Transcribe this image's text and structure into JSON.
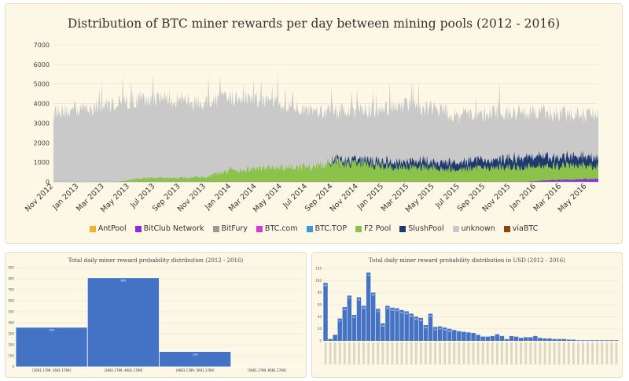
{
  "top": {
    "chart_data": {
      "type": "area",
      "title": "Distribution of BTC miner rewards per day between mining pools (2012 - 2016)",
      "yticks": [
        0,
        1000,
        2000,
        3000,
        4000,
        5000,
        6000,
        7000
      ],
      "ylim": [
        0,
        7000
      ],
      "x_labels": [
        "Nov 2012",
        "Jan 2013",
        "Mar 2013",
        "May 2013",
        "Jul 2013",
        "Sep 2013",
        "Nov 2013",
        "Jan 2014",
        "Mar 2014",
        "May 2014",
        "Jul 2014",
        "Sep 2014",
        "Nov 2014",
        "Jan 2015",
        "Mar 2015",
        "May 2015",
        "Jul 2015",
        "Sep 2015",
        "Nov 2015",
        "Jan 2016",
        "Mar 2016",
        "May 2016"
      ],
      "series": [
        {
          "name": "AntPool",
          "color": "#f2b32b"
        },
        {
          "name": "BitClub Network",
          "color": "#8a2be2"
        },
        {
          "name": "BitFury",
          "color": "#999999"
        },
        {
          "name": "BTC.com",
          "color": "#d23cc8"
        },
        {
          "name": "BTC.TOP",
          "color": "#3a9ad9"
        },
        {
          "name": "F2 Pool",
          "color": "#8bc34a"
        },
        {
          "name": "SlushPool",
          "color": "#1f3a6e"
        },
        {
          "name": "unknown",
          "color": "#c9c9c9"
        },
        {
          "name": "viaBTC",
          "color": "#8b4513"
        }
      ],
      "total_profile": [
        [
          0,
          3500
        ],
        [
          1,
          3700
        ],
        [
          2,
          3900
        ],
        [
          3,
          4100
        ],
        [
          4,
          4300
        ],
        [
          5,
          4200
        ],
        [
          6,
          4000
        ],
        [
          7,
          4300
        ],
        [
          8,
          4200
        ],
        [
          9,
          4000
        ],
        [
          10,
          3700
        ],
        [
          11,
          3600
        ],
        [
          12,
          3600
        ],
        [
          13,
          3700
        ],
        [
          14,
          3900
        ],
        [
          15,
          3700
        ],
        [
          16,
          3400
        ],
        [
          17,
          3400
        ],
        [
          18,
          3500
        ],
        [
          19,
          3600
        ],
        [
          20,
          3500
        ],
        [
          21,
          3400
        ],
        [
          22,
          3400
        ]
      ],
      "f2pool_profile": [
        [
          0,
          0
        ],
        [
          2.5,
          0
        ],
        [
          3.5,
          200
        ],
        [
          5,
          200
        ],
        [
          6,
          250
        ],
        [
          7,
          600
        ],
        [
          8,
          650
        ],
        [
          9,
          700
        ],
        [
          10,
          750
        ],
        [
          11,
          950
        ],
        [
          12,
          900
        ],
        [
          13,
          800
        ],
        [
          14,
          750
        ],
        [
          15,
          700
        ],
        [
          16,
          650
        ],
        [
          17,
          700
        ],
        [
          18,
          750
        ],
        [
          19,
          800
        ],
        [
          20,
          800
        ],
        [
          21,
          800
        ],
        [
          22,
          800
        ]
      ],
      "slushpool_profile": [
        [
          0,
          0
        ],
        [
          10.8,
          0
        ],
        [
          11,
          150
        ],
        [
          12,
          200
        ],
        [
          13,
          250
        ],
        [
          14,
          300
        ],
        [
          15,
          350
        ],
        [
          16,
          350
        ],
        [
          17,
          400
        ],
        [
          18,
          450
        ],
        [
          19,
          500
        ],
        [
          20,
          450
        ],
        [
          21,
          450
        ],
        [
          22,
          450
        ]
      ],
      "bitclub_profile": [
        [
          0,
          0
        ],
        [
          18.5,
          0
        ],
        [
          19,
          50
        ],
        [
          20,
          100
        ],
        [
          21,
          150
        ],
        [
          22,
          150
        ]
      ],
      "legend_position": "bottom"
    }
  },
  "bottom_left": {
    "chart_data": {
      "type": "bar",
      "title": "Total daily miner reward probability distribution (2012 - 2016)",
      "categories": [
        "[2681.1789, 3681.1789]",
        "(3681.1789, 4681.1789]",
        "(4681.1789, 5681.1789]",
        "(5681.1789, 6681.1789]"
      ],
      "values": [
        359,
        809,
        139,
        4
      ],
      "yticks": [
        0,
        100,
        200,
        300,
        400,
        500,
        600,
        700,
        800,
        900
      ],
      "ylim": [
        0,
        900
      ],
      "color": "#4472c4"
    }
  },
  "bottom_right": {
    "chart_data": {
      "type": "bar",
      "title": "Total daily miner reward probability distribution in USD (2012 - 2016)",
      "values": [
        96,
        3,
        10,
        37,
        56,
        75,
        43,
        72,
        58,
        113,
        80,
        53,
        29,
        58,
        55,
        54,
        51,
        49,
        45,
        40,
        38,
        26,
        45,
        23,
        24,
        22,
        20,
        18,
        16,
        15,
        14,
        13,
        10,
        7,
        7,
        8,
        11,
        8,
        3,
        8,
        7,
        5,
        6,
        6,
        8,
        5,
        4,
        4,
        3,
        3,
        3,
        2,
        2,
        1,
        1,
        1,
        1,
        1,
        1,
        1,
        1,
        1
      ],
      "yticks": [
        0,
        20,
        40,
        60,
        80,
        100,
        120
      ],
      "ylim": [
        0,
        120
      ],
      "color": "#4472c4"
    }
  }
}
